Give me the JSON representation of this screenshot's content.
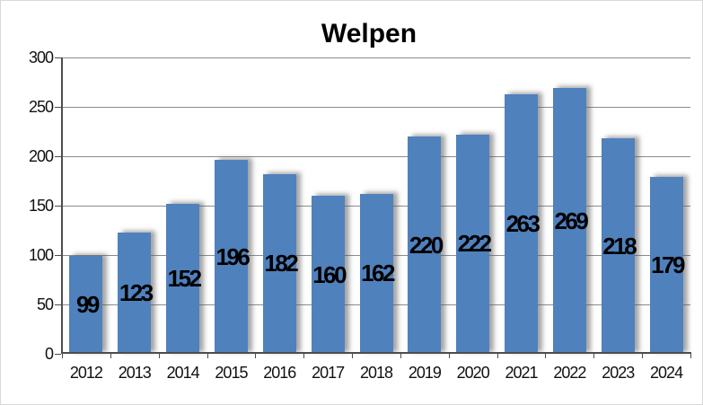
{
  "chart_data": {
    "type": "bar",
    "title": "Welpen",
    "categories": [
      "2012",
      "2013",
      "2014",
      "2015",
      "2016",
      "2017",
      "2018",
      "2019",
      "2020",
      "2021",
      "2022",
      "2023",
      "2024"
    ],
    "series": [
      {
        "name": "Welpen",
        "values": [
          99,
          123,
          152,
          196,
          182,
          160,
          162,
          220,
          222,
          263,
          269,
          218,
          179
        ]
      }
    ],
    "data_labels": "center-inside",
    "xlabel": "",
    "ylabel": "",
    "ylim": [
      0,
      300
    ],
    "yticks": [
      0,
      50,
      100,
      150,
      200,
      250,
      300
    ],
    "grid": true,
    "legend": "none",
    "colors": {
      "bar": "#4F81BD",
      "gridline": "#8C8C8C",
      "axis": "#4D4D4D",
      "text": "#000000"
    }
  }
}
